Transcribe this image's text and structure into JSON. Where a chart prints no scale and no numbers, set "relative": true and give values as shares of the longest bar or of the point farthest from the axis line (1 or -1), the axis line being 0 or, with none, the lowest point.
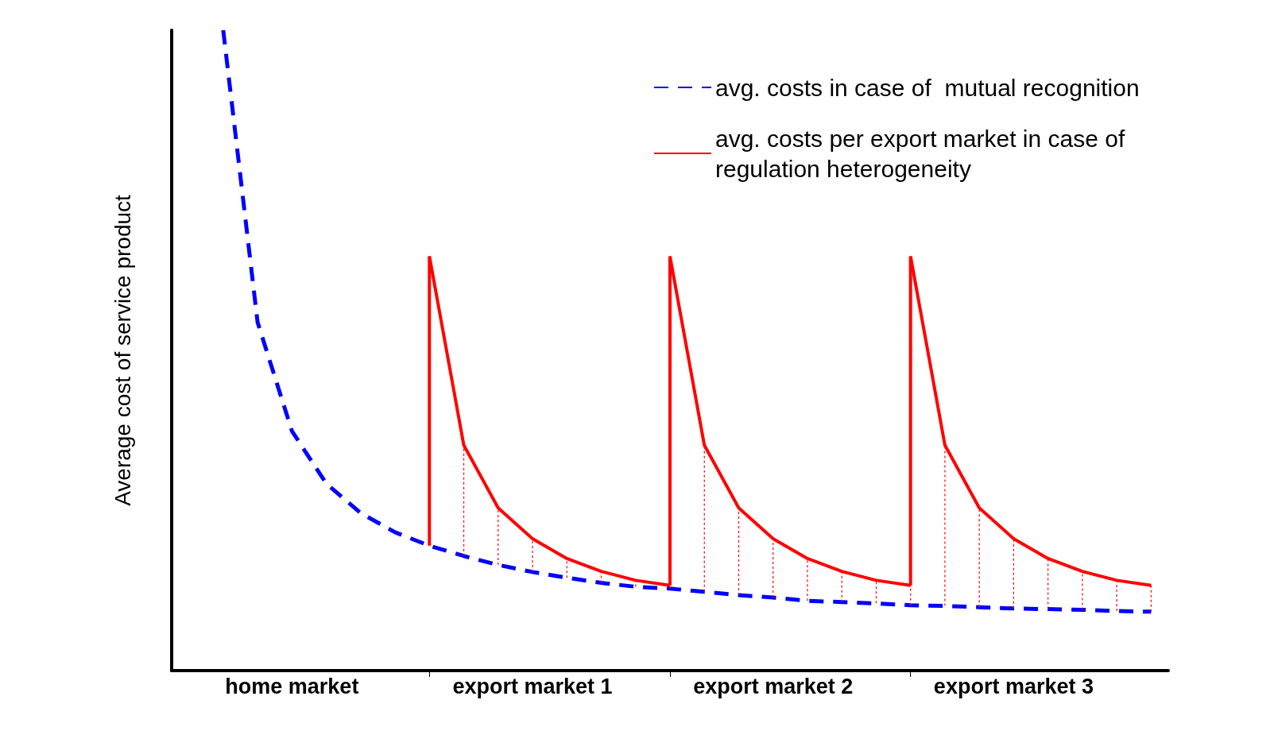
{
  "chart_data": {
    "type": "line",
    "ylabel": "Average cost of service product",
    "relative": true,
    "categories": [
      null,
      null,
      null,
      "home market",
      null,
      null,
      null,
      null,
      null,
      null,
      "export market 1",
      null,
      null,
      null,
      null,
      null,
      null,
      "export market 2",
      null,
      null,
      null,
      null,
      null,
      null,
      "export market 3",
      null,
      null,
      null,
      null
    ],
    "grid": false,
    "legend": "top right",
    "marker": "none",
    "series": [
      {
        "name": "avg. costs in case of  mutual recognition",
        "color": "#0000ff",
        "line_style": "dashed",
        "values": [
          null,
          1.0,
          0.544,
          0.374,
          0.292,
          0.246,
          0.216,
          0.195,
          0.179,
          0.165,
          0.154,
          0.145,
          0.137,
          0.131,
          0.128,
          0.123,
          0.118,
          0.114,
          0.109,
          0.107,
          0.105,
          0.102,
          0.101,
          0.099,
          0.097,
          0.096,
          0.095,
          0.093,
          0.092
        ]
      },
      {
        "name": "avg. costs per export market in case of regulation heterogeneity",
        "color": "#ff0000",
        "line_style": "solid",
        "values": [
          null,
          null,
          null,
          null,
          null,
          null,
          null,
          0.647,
          0.352,
          0.254,
          0.206,
          0.175,
          0.155,
          0.141,
          0.133,
          null,
          null,
          null,
          null,
          null,
          null,
          null,
          null,
          null,
          null,
          null,
          null,
          null,
          null
        ]
      },
      {
        "color": "#ff0000",
        "line_style": "solid",
        "values": [
          null,
          null,
          null,
          null,
          null,
          null,
          null,
          null,
          null,
          null,
          null,
          null,
          null,
          null,
          0.647,
          0.352,
          0.254,
          0.206,
          0.175,
          0.155,
          0.141,
          0.133,
          null,
          null,
          null,
          null,
          null,
          null,
          null
        ]
      },
      {
        "color": "#ff0000",
        "line_style": "solid",
        "values": [
          null,
          null,
          null,
          null,
          null,
          null,
          null,
          null,
          null,
          null,
          null,
          null,
          null,
          null,
          null,
          null,
          null,
          null,
          null,
          null,
          null,
          0.647,
          0.352,
          0.254,
          0.206,
          0.175,
          0.155,
          0.141,
          0.133
        ]
      }
    ]
  }
}
